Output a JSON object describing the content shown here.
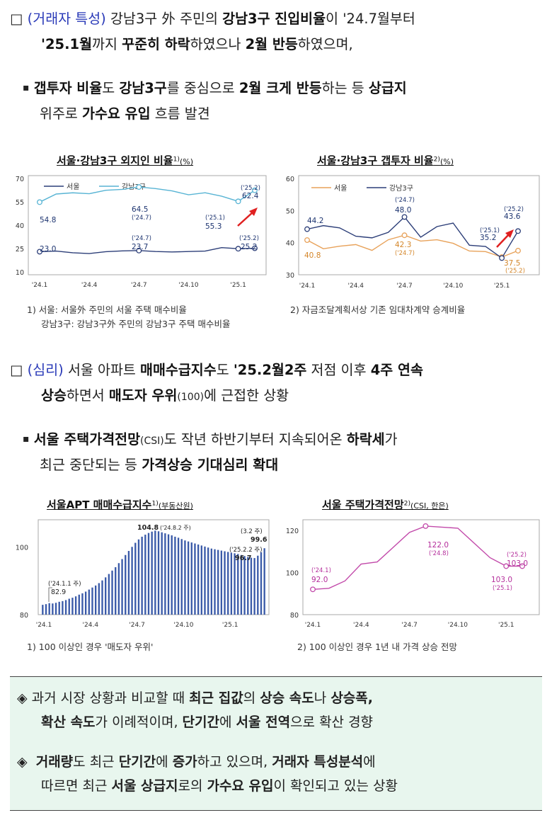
{
  "section1": {
    "marker": "□",
    "tag": "(거래자 특성)",
    "parts": [
      "강남3구 外 주민의 ",
      "강남3구 진입비율",
      "이 '24.7월부터"
    ],
    "line2": [
      "'25.1월",
      "까지 ",
      "꾸준히 하락",
      "하였으나 ",
      "2월 반등",
      "하였으며,"
    ],
    "sub": {
      "marker": "▪",
      "line1": [
        "갭투자 비율",
        "도 ",
        "강남3구",
        "를 중심으로 ",
        "2월 크게 반등",
        "하는 등 ",
        "상급지"
      ],
      "line2": [
        "위주로 ",
        "가수요 유입",
        " 흐름 발견"
      ]
    }
  },
  "chart1": {
    "title": "서울·강남3구 외지인 비율",
    "sup": "1)",
    "unit": "(%)",
    "legend": [
      "서울",
      "강남3구"
    ],
    "yticks": [
      "70",
      "55",
      "40",
      "25",
      "10"
    ],
    "xticks": [
      "'24.1",
      "'24.4",
      "'24.7",
      "'24.10",
      "'25.1"
    ],
    "labels": {
      "g_start": "54.8",
      "g_mid": "64.5",
      "g_mid_d": "('24.7)",
      "g_low": "55.3",
      "g_low_d": "('25.1)",
      "g_end": "62.4",
      "g_end_d": "('25.2)",
      "s_start": "23.0",
      "s_mid": "23.7",
      "s_mid_d": "('24.7)",
      "s_end": "25.2",
      "s_end_d": "('25.2)"
    }
  },
  "chart2": {
    "title": "서울·강남3구 갭투자 비율",
    "sup": "2)",
    "unit": "(%)",
    "legend": [
      "서울",
      "강남3구"
    ],
    "yticks": [
      "60",
      "50",
      "40",
      "30"
    ],
    "xticks": [
      "'24.1",
      "'24.4",
      "'24.7",
      "'24.10",
      "'25.1"
    ],
    "labels": {
      "g_start": "44.2",
      "g_mid": "48.0",
      "g_mid_d": "('24.7)",
      "g_low": "35.2",
      "g_low_d": "('25.1)",
      "g_end": "43.6",
      "g_end_d": "('25.2)",
      "s_start": "40.8",
      "s_mid": "42.3",
      "s_mid_d": "('24.7)",
      "s_end": "37.5",
      "s_end_d": "('25.2)"
    }
  },
  "notes1": {
    "n1": "1) 서울: 서울外 주민의 서울 주택 매수비율",
    "n1b": "강남3구: 강남3구外 주민의 강남3구 주택 매수비율",
    "n2": "2) 자금조달계획서상 기존 임대차계약 승계비율"
  },
  "section2": {
    "marker": "□",
    "tag": "(심리)",
    "line1": [
      " 서울 아파트 ",
      "매매수급지수",
      "도 ",
      "'25.2월2주",
      " 저점 이후 ",
      "4주 연속"
    ],
    "line2": [
      "상승",
      "하면서 ",
      "매도자 우위",
      "(100)",
      "에 근접한 상황"
    ],
    "sub": {
      "marker": "▪",
      "line1": [
        "서울 주택가격전망",
        "(CSI)",
        "도 작년 하반기부터 지속되어온 ",
        "하락세",
        "가"
      ],
      "line2": [
        "최근 중단되는 등 ",
        "가격상승 기대심리 확대"
      ]
    }
  },
  "chart3": {
    "title": "서울APT 매매수급지수",
    "sup": "1)",
    "unit": "(부동산원)",
    "yticks": [
      "100",
      "80"
    ],
    "xticks": [
      "'24.1",
      "'24.4",
      "'24.7",
      "'24.10",
      "'25.1"
    ],
    "labels": {
      "start": "82.9",
      "start_d": "('24.1.1 주)",
      "peak": "104.8",
      "peak_d": "('24.8.2 주)",
      "low": "96.7",
      "low_d": "('25.2.2 주)",
      "end": "99.6",
      "end_d": "(3.2 주)"
    }
  },
  "chart4": {
    "title": "서울 주택가격전망",
    "sup": "2)",
    "unit": "(CSI, 한은)",
    "yticks": [
      "120",
      "100",
      "80"
    ],
    "xticks": [
      "'24.1",
      "'24.4",
      "'24.7",
      "'24.10",
      "'25.1"
    ],
    "labels": {
      "start": "92.0",
      "start_d": "('24.1)",
      "peak": "122.0",
      "peak_d": "('24.8)",
      "low": "103.0",
      "low_d": "('25.1)",
      "end": "103.0",
      "end_d": "('25.2)"
    }
  },
  "notes2": {
    "n1": "1) 100 이상인 경우 '매도자 우위'",
    "n2": "2) 100 이상인 경우 1년 내 가격 상승 전망"
  },
  "summary": {
    "marker": "◈",
    "r1a": [
      "과거 시장 상황과 비교할 때 ",
      "최근 집값",
      "의 ",
      "상승 속도",
      "나 ",
      "상승폭,"
    ],
    "r1b": [
      "확산 속도",
      "가 이례적이며, ",
      "단기간",
      "에 ",
      "서울 전역",
      "으로 확산 경향"
    ],
    "r2a": [
      "거래량",
      "도 최근 ",
      "단기간",
      "에 ",
      "증가",
      "하고 있으며, ",
      "거래자 특성분석",
      "에"
    ],
    "r2b": [
      "따르면 최근 ",
      "서울 상급지",
      "로의 ",
      "가수요 유입",
      "이 확인되고 있는 상황"
    ]
  },
  "chart_data": [
    {
      "type": "line",
      "title": "서울·강남3구 외지인 비율",
      "ylabel": "(%)",
      "ylim": [
        10,
        70
      ],
      "x": [
        "'24.1",
        "'24.2",
        "'24.3",
        "'24.4",
        "'24.5",
        "'24.6",
        "'24.7",
        "'24.8",
        "'24.9",
        "'24.10",
        "'24.11",
        "'24.12",
        "'25.1",
        "'25.2"
      ],
      "series": [
        {
          "name": "서울",
          "values": [
            23.0,
            23.4,
            22.3,
            21.8,
            23.0,
            23.5,
            23.7,
            23.1,
            22.8,
            23.1,
            23.4,
            25.6,
            24.9,
            25.2
          ]
        },
        {
          "name": "강남3구",
          "values": [
            54.8,
            60.0,
            60.8,
            60.2,
            62.4,
            63.0,
            64.5,
            63.5,
            62.0,
            59.5,
            60.8,
            58.6,
            55.3,
            62.4
          ]
        }
      ]
    },
    {
      "type": "line",
      "title": "서울·강남3구 갭투자 비율",
      "ylabel": "(%)",
      "ylim": [
        30,
        60
      ],
      "x": [
        "'24.1",
        "'24.2",
        "'24.3",
        "'24.4",
        "'24.5",
        "'24.6",
        "'24.7",
        "'24.8",
        "'24.9",
        "'24.10",
        "'24.11",
        "'24.12",
        "'25.1",
        "'25.2"
      ],
      "series": [
        {
          "name": "서울",
          "values": [
            40.8,
            38.1,
            38.9,
            39.4,
            37.6,
            40.9,
            42.3,
            40.5,
            40.9,
            39.8,
            37.4,
            37.2,
            35.5,
            37.5
          ]
        },
        {
          "name": "강남3구",
          "values": [
            44.2,
            45.3,
            44.6,
            42.0,
            41.5,
            43.2,
            48.0,
            41.7,
            45.0,
            46.1,
            39.2,
            38.8,
            35.2,
            43.6
          ]
        }
      ]
    },
    {
      "type": "bar",
      "title": "서울APT 매매수급지수",
      "ylim": [
        80,
        108
      ],
      "x_range": [
        "'24.1.1 주",
        "'25.3.2 주"
      ],
      "values": [
        82.9,
        83.1,
        83.4,
        83.3,
        83.5,
        83.8,
        84.0,
        84.3,
        84.7,
        85.0,
        85.4,
        85.9,
        86.3,
        86.8,
        87.4,
        88.0,
        88.6,
        89.3,
        90.1,
        91.0,
        92.0,
        93.0,
        94.0,
        95.2,
        96.4,
        97.6,
        98.8,
        100.0,
        101.2,
        102.2,
        103.0,
        103.6,
        104.1,
        104.5,
        104.8,
        104.6,
        104.3,
        104.0,
        103.7,
        103.4,
        103.0,
        102.7,
        102.3,
        101.9,
        101.6,
        101.3,
        101.0,
        100.7,
        100.4,
        100.1,
        99.8,
        99.5,
        99.3,
        99.1,
        98.9,
        98.7,
        98.5,
        98.3,
        98.1,
        97.9,
        97.6,
        97.3,
        97.0,
        96.8,
        96.7,
        97.4,
        98.4,
        99.6
      ]
    },
    {
      "type": "line",
      "title": "서울 주택가격전망",
      "ylim": [
        80,
        125
      ],
      "x": [
        "'24.1",
        "'24.2",
        "'24.3",
        "'24.4",
        "'24.5",
        "'24.6",
        "'24.7",
        "'24.8",
        "'24.9",
        "'24.10",
        "'24.11",
        "'24.12",
        "'25.1",
        "'25.2"
      ],
      "series": [
        {
          "name": "서울",
          "values": [
            92.0,
            92.5,
            96.0,
            104.0,
            105.0,
            112.0,
            119.0,
            122.0,
            121.5,
            121.0,
            114.0,
            107.0,
            103.0,
            103.0
          ]
        }
      ]
    }
  ]
}
